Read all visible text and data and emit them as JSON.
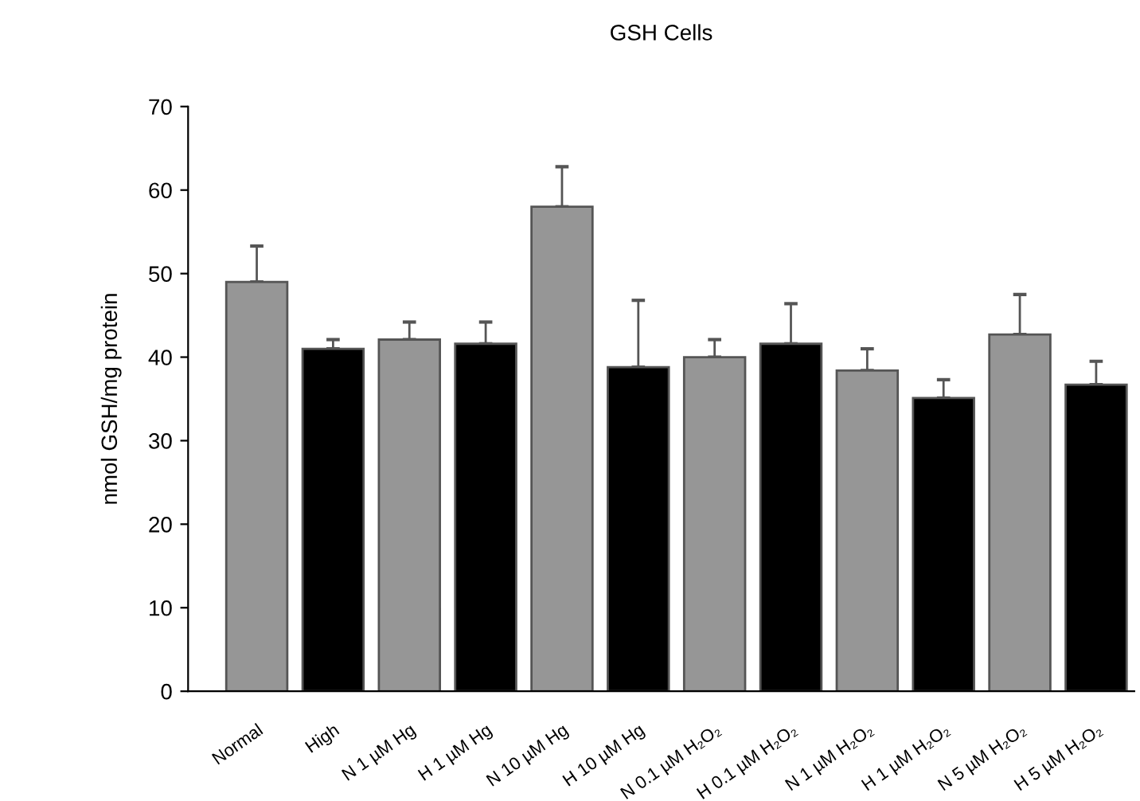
{
  "chart_data": {
    "type": "bar",
    "title": "GSH Cells",
    "ylabel": "nmol GSH/mg protein",
    "categories": [
      "Normal",
      "High",
      "N 1 µM Hg",
      "H 1 µM Hg",
      "N 10 µM Hg",
      "H 10 µM Hg",
      "N 0.1 µM H₂O₂",
      "H 0.1 µM H₂O₂",
      "N 1 µM H₂O₂",
      "H 1 µM H₂O₂",
      "N 5 µM H₂O₂",
      "H 5 µM H₂O₂"
    ],
    "values": [
      49,
      41,
      42.1,
      41.6,
      58,
      38.8,
      40,
      41.6,
      38.4,
      35.1,
      42.7,
      36.7
    ],
    "colors": [
      "#969696",
      "#000000",
      "#969696",
      "#000000",
      "#969696",
      "#000000",
      "#969696",
      "#000000",
      "#969696",
      "#000000",
      "#969696",
      "#000000"
    ],
    "errors": [
      [
        49,
        53.3
      ],
      [
        41,
        42.1
      ],
      [
        42.1,
        44.2
      ],
      [
        41.6,
        44.2
      ],
      [
        58,
        62.8
      ],
      [
        38.8,
        46.8
      ],
      [
        40,
        42.1
      ],
      [
        41.6,
        46.4
      ],
      [
        38.4,
        41
      ],
      [
        35.1,
        37.3
      ],
      [
        42.7,
        47.5
      ],
      [
        36.7,
        39.5
      ]
    ],
    "ylim": [
      0,
      70
    ],
    "yticks": [
      0,
      10,
      20,
      30,
      40,
      50,
      60,
      70
    ],
    "grid": false,
    "legend": false
  }
}
